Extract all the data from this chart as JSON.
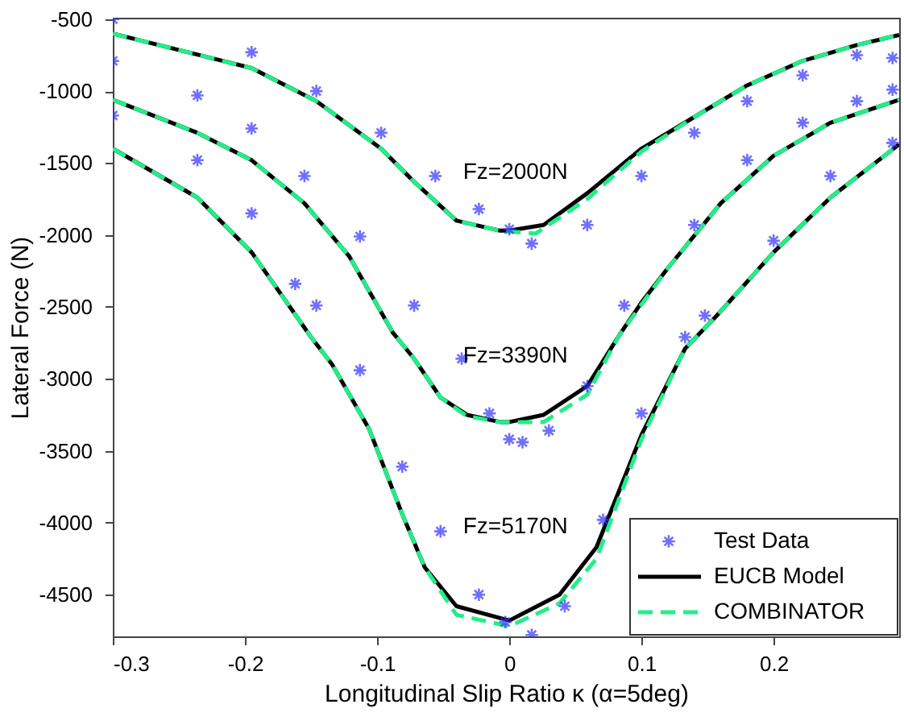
{
  "chart_data": {
    "type": "line",
    "xlabel": "Longitudinal Slip Ratio κ (α=5deg)",
    "ylabel": "Lateral Force (N)",
    "xlim": [
      -0.3,
      0.295
    ],
    "ylim": [
      -4790,
      -490
    ],
    "xticks": [
      -0.3,
      -0.2,
      -0.1,
      0,
      0.1,
      0.2
    ],
    "yticks": [
      -4500,
      -4000,
      -3500,
      -3000,
      -2500,
      -2000,
      -1500,
      -1000,
      -500
    ],
    "grid": false,
    "legend": "bottom right",
    "annotations": [
      "Fz=2000N",
      "Fz=3390N",
      "Fz=5170N"
    ],
    "series": [
      {
        "name": "Test Data",
        "type": "scatter",
        "marker": "cross",
        "color": "#3333ff",
        "x": [
          -0.3,
          -0.195,
          -0.146,
          -0.097,
          -0.056,
          -0.023,
          0,
          0.017,
          0.059,
          0.1,
          0.14,
          0.18,
          0.222,
          0.263,
          0.29
        ],
        "values": [
          -500,
          -730,
          -1000,
          -1290,
          -1590,
          -1820,
          -1960,
          -2060,
          -1930,
          -1590,
          -1290,
          -1070,
          -890,
          -750,
          -770
        ]
      },
      {
        "type": "scatter",
        "marker": "cross",
        "color": "#3333ff",
        "x": [
          -0.3,
          -0.236,
          -0.195,
          -0.155,
          -0.113,
          -0.072,
          -0.036,
          -0.015,
          0,
          0.01,
          0.03,
          0.059,
          0.087,
          0.14,
          0.18,
          0.222,
          0.263,
          0.29
        ],
        "values": [
          -790,
          -1030,
          -1260,
          -1590,
          -2010,
          -2490,
          -2860,
          -3240,
          -3420,
          -3440,
          -3360,
          -3050,
          -2490,
          -1930,
          -1480,
          -1220,
          -1070,
          -990
        ]
      },
      {
        "type": "scatter",
        "marker": "cross",
        "color": "#3333ff",
        "x": [
          -0.3,
          -0.236,
          -0.195,
          -0.162,
          -0.146,
          -0.113,
          -0.081,
          -0.052,
          -0.023,
          -0.003,
          0.017,
          0.042,
          0.071,
          0.1,
          0.133,
          0.148,
          0.2,
          0.243,
          0.29
        ],
        "values": [
          -1170,
          -1480,
          -1850,
          -2340,
          -2490,
          -2940,
          -3610,
          -4060,
          -4500,
          -4690,
          -4780,
          -4580,
          -3980,
          -3240,
          -2710,
          -2560,
          -2040,
          -1590,
          -1360
        ]
      },
      {
        "name": "EUCB Model",
        "line_style": "solid",
        "color": "#000000",
        "x": [
          -0.3,
          -0.195,
          -0.146,
          -0.097,
          -0.072,
          -0.04,
          -0.007,
          0,
          0.026,
          0.059,
          0.1,
          0.14,
          0.18,
          0.222,
          0.263,
          0.295
        ],
        "values": [
          -600,
          -840,
          -1070,
          -1400,
          -1630,
          -1900,
          -1970,
          -1970,
          -1930,
          -1710,
          -1400,
          -1180,
          -960,
          -790,
          -680,
          -610
        ]
      },
      {
        "line_style": "solid",
        "color": "#000000",
        "x": [
          -0.3,
          -0.236,
          -0.195,
          -0.155,
          -0.121,
          -0.088,
          -0.072,
          -0.052,
          -0.032,
          -0.007,
          0,
          0.026,
          0.059,
          0.083,
          0.1,
          0.12,
          0.16,
          0.2,
          0.243,
          0.295
        ],
        "values": [
          -1060,
          -1290,
          -1480,
          -1780,
          -2150,
          -2680,
          -2860,
          -3130,
          -3250,
          -3300,
          -3300,
          -3250,
          -3050,
          -2700,
          -2470,
          -2230,
          -1780,
          -1450,
          -1220,
          -1060
        ]
      },
      {
        "line_style": "solid",
        "color": "#000000",
        "x": [
          -0.3,
          -0.236,
          -0.195,
          -0.15,
          -0.134,
          -0.106,
          -0.081,
          -0.064,
          -0.04,
          0,
          0.038,
          0.066,
          0.1,
          0.133,
          0.157,
          0.2,
          0.243,
          0.295
        ],
        "values": [
          -1400,
          -1740,
          -2120,
          -2710,
          -2900,
          -3350,
          -3940,
          -4310,
          -4580,
          -4680,
          -4500,
          -4170,
          -3390,
          -2790,
          -2560,
          -2120,
          -1740,
          -1370
        ]
      },
      {
        "name": "COMBINATOR",
        "line_style": "dashed",
        "color": "#22ee88",
        "x": [
          -0.3,
          -0.195,
          -0.146,
          -0.097,
          -0.072,
          -0.04,
          -0.007,
          0.02,
          0.059,
          0.1,
          0.14,
          0.18,
          0.222,
          0.263,
          0.295
        ],
        "values": [
          -600,
          -840,
          -1070,
          -1400,
          -1630,
          -1900,
          -1970,
          -1990,
          -1750,
          -1420,
          -1180,
          -960,
          -790,
          -680,
          -610
        ]
      },
      {
        "line_style": "dashed",
        "color": "#22ee88",
        "x": [
          -0.3,
          -0.236,
          -0.195,
          -0.155,
          -0.121,
          -0.088,
          -0.072,
          -0.052,
          -0.032,
          -0.007,
          0.026,
          0.059,
          0.083,
          0.12,
          0.16,
          0.2,
          0.243,
          0.295
        ],
        "values": [
          -1060,
          -1290,
          -1480,
          -1780,
          -2150,
          -2680,
          -2860,
          -3130,
          -3260,
          -3300,
          -3300,
          -3110,
          -2700,
          -2230,
          -1780,
          -1450,
          -1220,
          -1060
        ]
      },
      {
        "line_style": "dashed",
        "color": "#22ee88",
        "x": [
          -0.3,
          -0.236,
          -0.195,
          -0.15,
          -0.134,
          -0.106,
          -0.081,
          -0.064,
          -0.04,
          0,
          0.038,
          0.066,
          0.1,
          0.133,
          0.157,
          0.2,
          0.243,
          0.295
        ],
        "values": [
          -1400,
          -1740,
          -2120,
          -2710,
          -2900,
          -3350,
          -3940,
          -4310,
          -4640,
          -4720,
          -4560,
          -4250,
          -3420,
          -2790,
          -2560,
          -2120,
          -1740,
          -1370
        ]
      }
    ]
  }
}
